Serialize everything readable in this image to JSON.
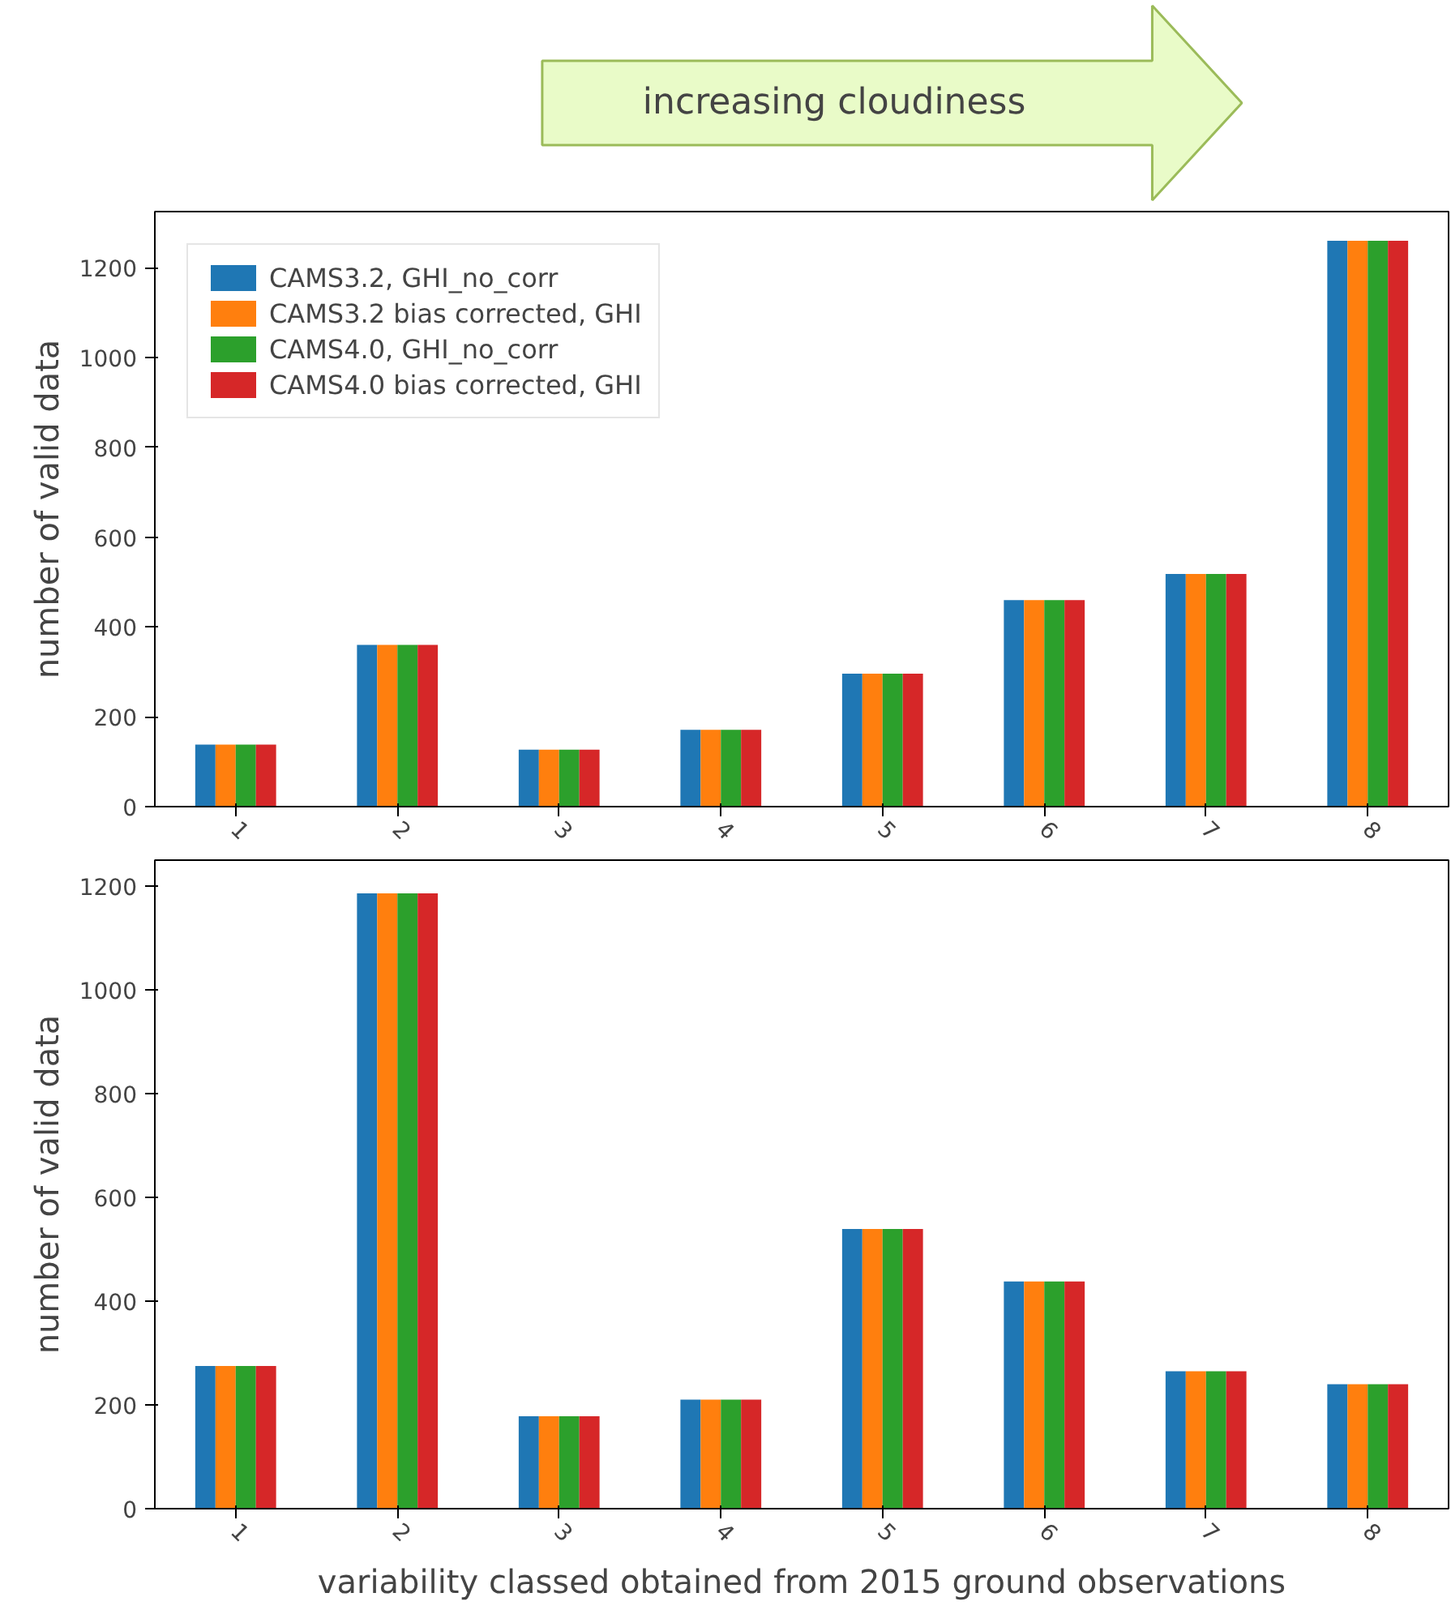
{
  "chart_data": [
    {
      "type": "bar",
      "annotations": [
        "increasing cloudiness"
      ],
      "ylabel": "number of valid data",
      "categories": [
        "1",
        "2",
        "3",
        "4",
        "5",
        "6",
        "7",
        "8"
      ],
      "ylim": [
        0,
        1325
      ],
      "yticks": [
        0,
        200,
        400,
        600,
        800,
        1000,
        1200
      ],
      "legend": "top left",
      "grid": false,
      "series": [
        {
          "name": "CAMS3.2, GHI_no_corr",
          "color": "#1f77b4",
          "values": [
            138,
            360,
            127,
            171,
            296,
            460,
            518,
            1260
          ]
        },
        {
          "name": "CAMS3.2 bias corrected, GHI",
          "color": "#ff7f0e",
          "values": [
            138,
            360,
            127,
            171,
            296,
            460,
            518,
            1260
          ]
        },
        {
          "name": "CAMS4.0, GHI_no_corr",
          "color": "#2ca02c",
          "values": [
            138,
            360,
            127,
            171,
            296,
            460,
            518,
            1260
          ]
        },
        {
          "name": "CAMS4.0 bias corrected, GHI",
          "color": "#d62728",
          "values": [
            138,
            360,
            127,
            171,
            296,
            460,
            518,
            1260
          ]
        }
      ]
    },
    {
      "type": "bar",
      "ylabel": "number of valid data",
      "xlabel": "variability classed obtained from 2015 ground observations",
      "categories": [
        "1",
        "2",
        "3",
        "4",
        "5",
        "6",
        "7",
        "8"
      ],
      "ylim": [
        0,
        1250
      ],
      "yticks": [
        0,
        200,
        400,
        600,
        800,
        1000,
        1200
      ],
      "legend": false,
      "grid": false,
      "series": [
        {
          "color": "#1f77b4",
          "values": [
            275,
            1186,
            178,
            210,
            539,
            438,
            265,
            240
          ]
        },
        {
          "color": "#ff7f0e",
          "values": [
            275,
            1186,
            178,
            210,
            539,
            438,
            265,
            240
          ]
        },
        {
          "color": "#2ca02c",
          "values": [
            275,
            1186,
            178,
            210,
            539,
            438,
            265,
            240
          ]
        },
        {
          "color": "#d62728",
          "values": [
            275,
            1186,
            178,
            210,
            539,
            438,
            265,
            240
          ]
        }
      ]
    }
  ]
}
